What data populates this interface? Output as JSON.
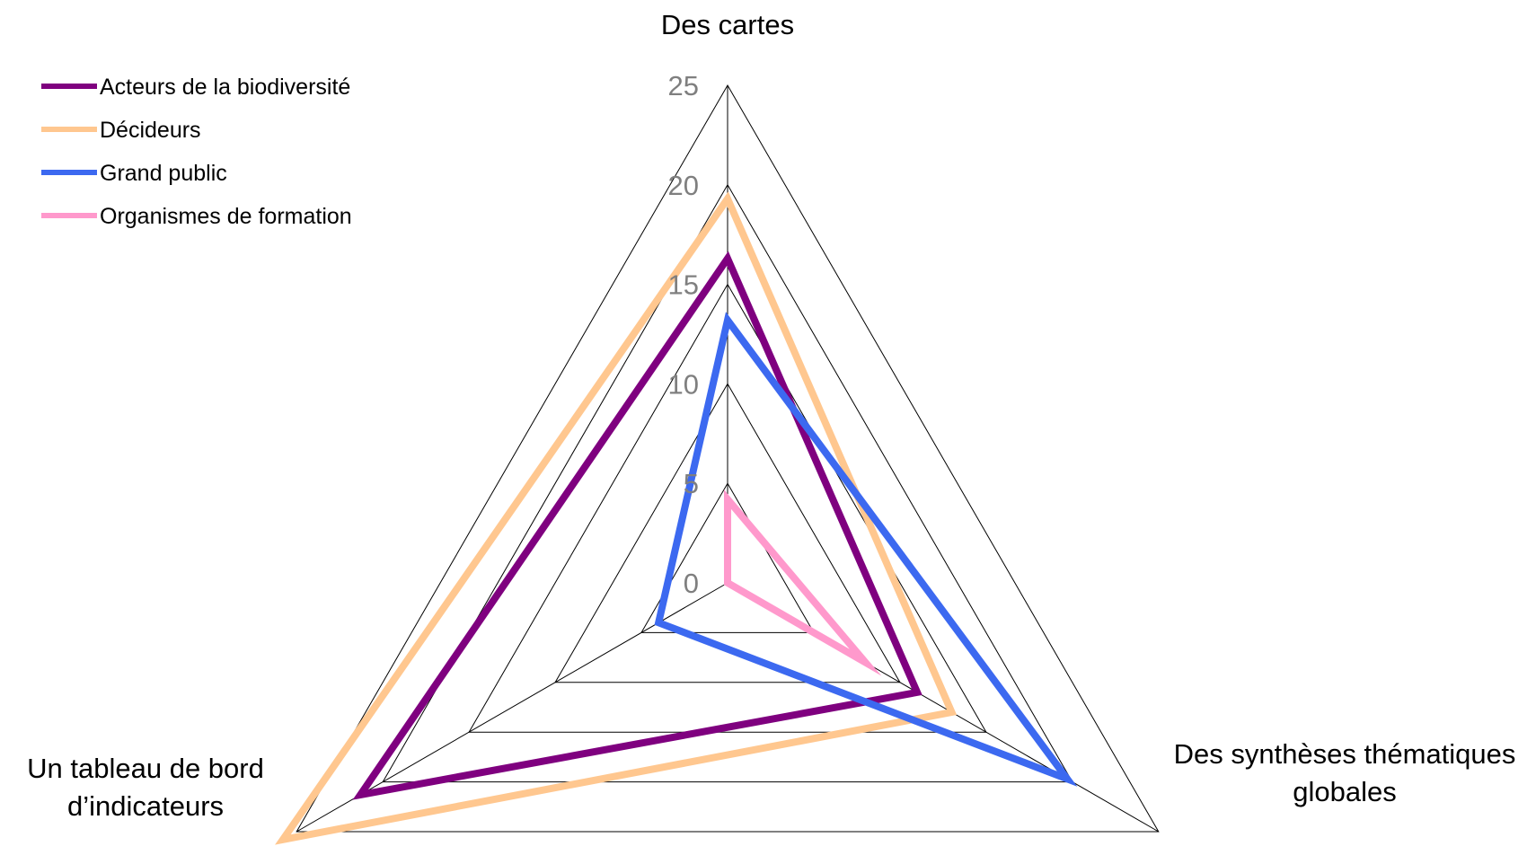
{
  "chart_data": {
    "type": "radar",
    "axes": [
      "Des cartes",
      "Des synthèses thématiques globales",
      "Un tableau de bord d’indicateurs"
    ],
    "axis_label_lines": [
      [
        "Des cartes"
      ],
      [
        "Des synthèses thématiques",
        "globales"
      ],
      [
        "Un tableau de bord",
        "d’indicateurs"
      ]
    ],
    "r_range": [
      0,
      25
    ],
    "r_ticks": [
      "0",
      "5",
      "10",
      "15",
      "20",
      "25"
    ],
    "grid": true,
    "legend_position": "top-left",
    "series": [
      {
        "name": "Acteurs de la biodiversité",
        "color": "#7f007f",
        "values": [
          16.3,
          11.0,
          21.3
        ]
      },
      {
        "name": "Décideurs",
        "color": "#ffc78f",
        "values": [
          19.3,
          13.0,
          25.8
        ]
      },
      {
        "name": "Grand public",
        "color": "#3c69f0",
        "values": [
          13.2,
          19.7,
          4.0
        ]
      },
      {
        "name": "Organismes de formation",
        "color": "#ff99cc",
        "values": [
          4.2,
          8.0,
          0.0
        ]
      }
    ]
  }
}
